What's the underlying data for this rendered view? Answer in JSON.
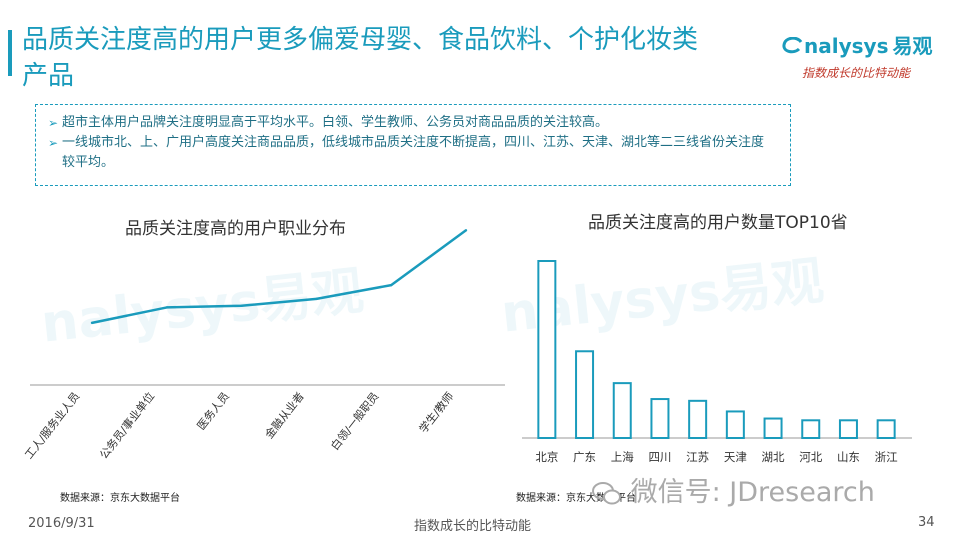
{
  "header": {
    "title": "品质关注度高的用户更多偏爱母婴、食品饮料、个护化妆类产品",
    "logo_text": "nalysys",
    "logo_cn": "易观",
    "logo_slogan": "指数成长的比特动能"
  },
  "notes": [
    "超市主体用户品牌关注度明显高于平均水平。白领、学生教师、公务员对商品品质的关注较高。",
    "一线城市北、上、广用户高度关注商品品质，低线城市品质关注度不断提高，四川、江苏、天津、湖北等二三线省份关注度较平均。"
  ],
  "chart_data": [
    {
      "type": "line",
      "title": "品质关注度高的用户职业分布",
      "categories": [
        "工人/服务业人员",
        "公务员/事业单位",
        "医务人员",
        "金融从业者",
        "白领/一般职员",
        "学生/教师"
      ],
      "values": [
        1.0,
        1.9,
        2.0,
        2.4,
        3.2,
        6.4
      ],
      "ylim": [
        0,
        7
      ],
      "color": "#1a9bbc",
      "grid": false
    },
    {
      "type": "bar",
      "title": "品质关注度高的用户数量TOP10省",
      "categories": [
        "北京",
        "广东",
        "上海",
        "四川",
        "江苏",
        "天津",
        "湖北",
        "河北",
        "山东",
        "浙江"
      ],
      "values": [
        100,
        49,
        31,
        22,
        21,
        15,
        11,
        10,
        10,
        10
      ],
      "ylim": [
        0,
        100
      ],
      "color": "#1a9bbc",
      "grid": false
    }
  ],
  "sources": {
    "left": "数据来源：京东大数据平台",
    "right": "数据来源：京东大数据平台"
  },
  "footer": {
    "date": "2016/9/31",
    "slogan": "指数成长的比特动能",
    "page": "34"
  },
  "wechat_overlay": "微信号: JDresearch"
}
